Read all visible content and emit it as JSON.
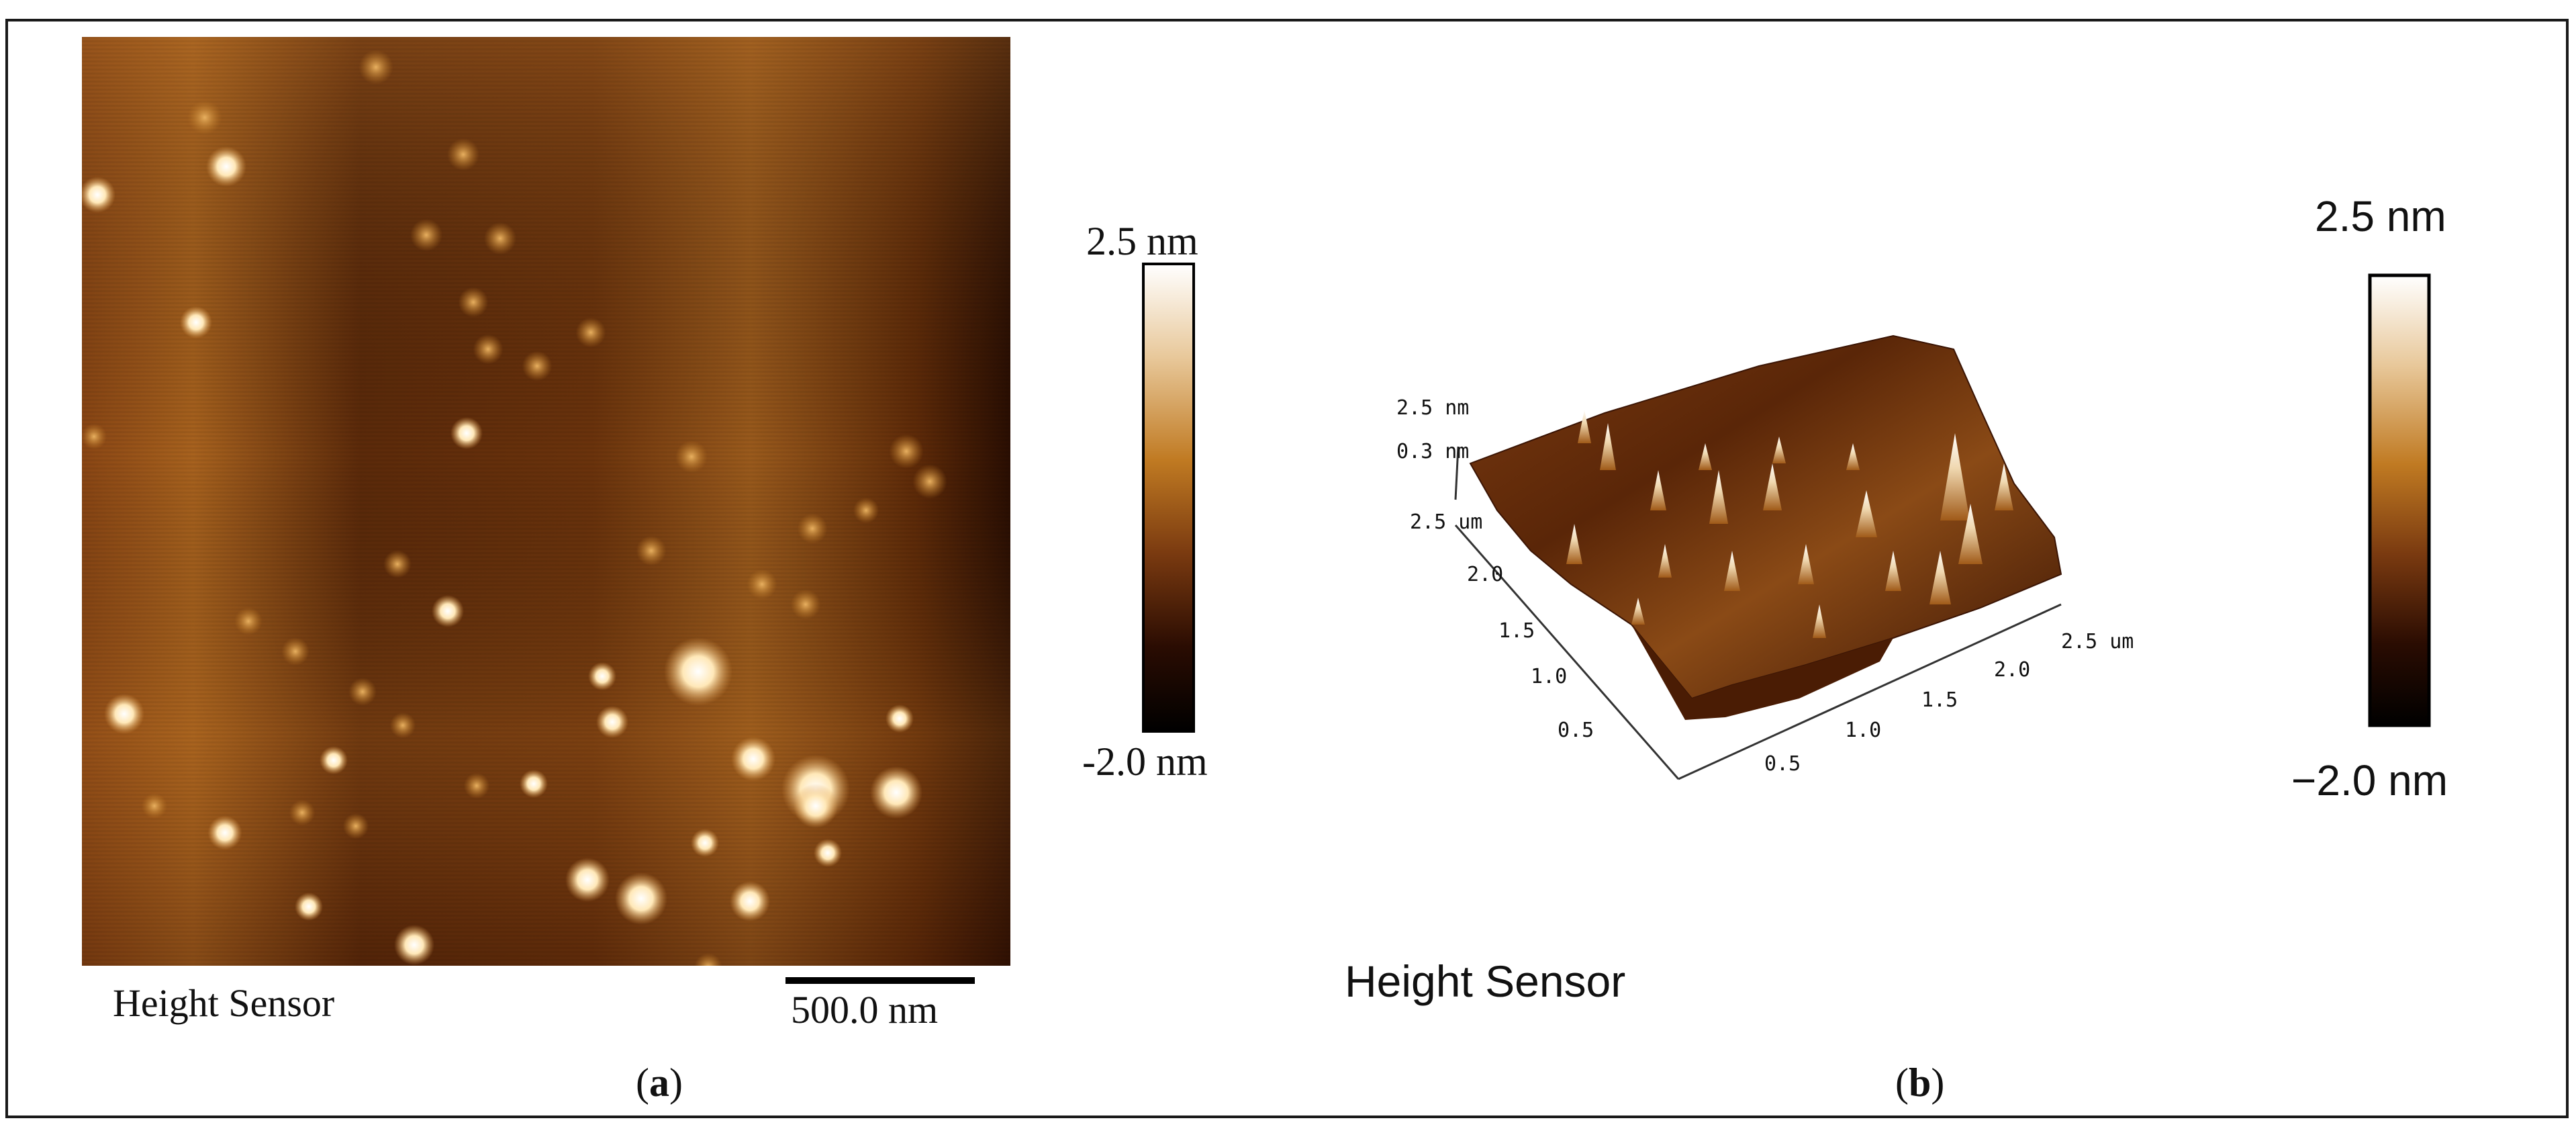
{
  "panel_a": {
    "caption_letter": "a",
    "title": "Height Sensor",
    "scalebar_label": "500.0 nm",
    "colorbar_max": "2.5 nm",
    "colorbar_min": "-2.0 nm"
  },
  "panel_b": {
    "caption_letter": "b",
    "title": "Height Sensor",
    "colorbar_max": "2.5 nm",
    "colorbar_min": "−2.0 nm",
    "z_labels": [
      "2.5 nm",
      "0.3 nm"
    ],
    "y_axis_labels": [
      "2.5 um",
      "2.0",
      "1.5",
      "1.0",
      "0.5"
    ],
    "x_axis_labels": [
      "0.5",
      "1.0",
      "1.5",
      "2.0",
      "2.5 um"
    ]
  },
  "colors": {
    "afm_dark": "#1a0800",
    "afm_mid": "#7a3d0c",
    "afm_light": "#c57d2e",
    "afm_peak": "#fff6e8",
    "frame": "#1a1a1a"
  }
}
